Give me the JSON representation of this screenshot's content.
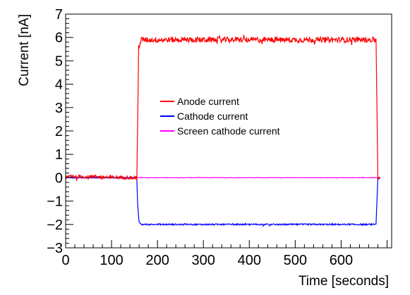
{
  "chart_data": {
    "type": "line",
    "title": "",
    "xlabel": "Time [seconds]",
    "ylabel": "Current [nA]",
    "xlim": [
      0,
      710
    ],
    "ylim": [
      -3,
      7
    ],
    "x_ticks": [
      0,
      100,
      200,
      300,
      400,
      500,
      600
    ],
    "x_tick_labels": [
      "0",
      "100",
      "200",
      "300",
      "400",
      "500",
      "600"
    ],
    "y_ticks": [
      -3,
      -2,
      -1,
      0,
      1,
      2,
      3,
      4,
      5,
      6,
      7
    ],
    "y_tick_labels": [
      "−3",
      "−2",
      "−1",
      "0",
      "1",
      "2",
      "3",
      "4",
      "5",
      "6",
      "7"
    ],
    "legend_position": "center",
    "grid": false,
    "series": [
      {
        "name": "Anode current",
        "color": "#ff0000",
        "x": [
          0,
          8,
          155,
          157,
          159,
          165,
          200,
          300,
          400,
          500,
          600,
          670,
          676,
          678,
          680,
          685
        ],
        "y": [
          0,
          0.05,
          0,
          2.5,
          5.6,
          5.9,
          5.9,
          5.9,
          5.9,
          5.9,
          5.9,
          5.9,
          5.9,
          3.0,
          0,
          0
        ],
        "noise": 0.12
      },
      {
        "name": "Cathode current",
        "color": "#0000ff",
        "x": [
          0,
          155,
          157,
          160,
          165,
          200,
          300,
          400,
          500,
          600,
          670,
          676,
          678,
          680,
          685
        ],
        "y": [
          0,
          0,
          -1.2,
          -1.9,
          -2.0,
          -2.0,
          -2.0,
          -2.0,
          -2.0,
          -2.0,
          -2.0,
          -2.0,
          -1.0,
          0,
          0
        ],
        "noise": 0.03
      },
      {
        "name": "Screen cathode current",
        "color": "#ff00ff",
        "x": [
          0,
          685
        ],
        "y": [
          0,
          0
        ],
        "noise": 0.015
      }
    ]
  }
}
